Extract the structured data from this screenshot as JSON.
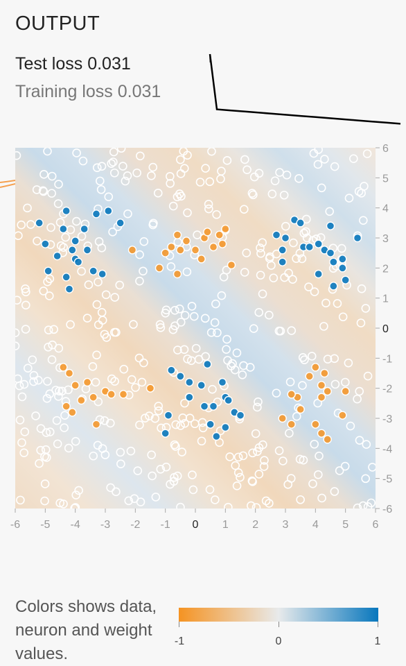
{
  "section_title": "OUTPUT",
  "test_loss": "Test loss 0.031",
  "training_loss": "Training loss 0.031",
  "loss_curve": [
    0.42,
    0.036,
    0.035,
    0.034,
    0.034,
    0.033,
    0.033,
    0.032,
    0.032,
    0.032,
    0.031,
    0.031,
    0.031,
    0.031,
    0.031
  ],
  "chart_data": {
    "type": "scatter",
    "title": "",
    "xlabel": "",
    "ylabel": "",
    "xlim": [
      -6,
      6
    ],
    "ylim": [
      -6,
      6
    ],
    "x_ticks": [
      "-6",
      "-5",
      "-4",
      "-3",
      "-2",
      "-1",
      "0",
      "1",
      "2",
      "3",
      "4",
      "5",
      "6"
    ],
    "y_ticks": [
      "6",
      "5",
      "4",
      "3",
      "2",
      "1",
      "0",
      "-1",
      "-2",
      "-3",
      "-4",
      "-5",
      "-6"
    ],
    "background": "decision-boundary heatmap, diagonal bands",
    "series": [
      {
        "class": "orange",
        "color": "#f59322",
        "points": [
          [
            -0.6,
            3.1
          ],
          [
            -0.3,
            2.9
          ],
          [
            0,
            2.6
          ],
          [
            0.3,
            3.0
          ],
          [
            0.8,
            3.1
          ],
          [
            0.9,
            2.8
          ],
          [
            -0.8,
            2.7
          ],
          [
            -0.5,
            2.6
          ],
          [
            0.2,
            2.3
          ],
          [
            0.6,
            2.7
          ],
          [
            1.0,
            3.3
          ],
          [
            -1.0,
            2.5
          ],
          [
            0.4,
            3.2
          ],
          [
            -2.1,
            2.6
          ],
          [
            -1.2,
            2.0
          ],
          [
            -0.6,
            1.8
          ],
          [
            -4.2,
            -1.5
          ],
          [
            -4.0,
            -1.9
          ],
          [
            -3.8,
            -2.4
          ],
          [
            -4.3,
            -2.6
          ],
          [
            -4.1,
            -2.8
          ],
          [
            -3.4,
            -2.3
          ],
          [
            -3.0,
            -2.1
          ],
          [
            -2.8,
            -2.2
          ],
          [
            -2.4,
            -2.2
          ],
          [
            -3.6,
            -1.8
          ],
          [
            -3.3,
            -3.2
          ],
          [
            -4.4,
            -1.3
          ],
          [
            -1.5,
            -2.0
          ],
          [
            3.4,
            -2.3
          ],
          [
            3.2,
            -2.2
          ],
          [
            3.5,
            -2.7
          ],
          [
            2.9,
            -3.0
          ],
          [
            3.2,
            -3.2
          ],
          [
            4.0,
            -1.3
          ],
          [
            4.3,
            -1.5
          ],
          [
            4.2,
            -1.9
          ],
          [
            4.4,
            -2.1
          ],
          [
            4.2,
            -2.3
          ],
          [
            3.8,
            -1.6
          ],
          [
            4.0,
            -3.2
          ],
          [
            4.2,
            -3.5
          ],
          [
            4.4,
            -3.7
          ],
          [
            5.0,
            -2.1
          ],
          [
            4.9,
            -2.9
          ],
          [
            1.2,
            2.1
          ]
        ]
      },
      {
        "class": "blue",
        "color": "#0877bd",
        "points": [
          [
            -4.3,
            3.9
          ],
          [
            -4.4,
            3.3
          ],
          [
            -4.1,
            2.6
          ],
          [
            -4.0,
            2.3
          ],
          [
            -3.9,
            2.2
          ],
          [
            -3.6,
            2.6
          ],
          [
            -3.4,
            1.9
          ],
          [
            -3.1,
            1.8
          ],
          [
            -4.3,
            1.7
          ],
          [
            -4.6,
            2.4
          ],
          [
            -5.0,
            2.8
          ],
          [
            -4.9,
            1.9
          ],
          [
            -4.2,
            1.3
          ],
          [
            -5.2,
            3.5
          ],
          [
            -3.7,
            3.3
          ],
          [
            -4.0,
            2.9
          ],
          [
            -3.3,
            3.8
          ],
          [
            -2.9,
            3.9
          ],
          [
            -2.5,
            3.5
          ],
          [
            3.3,
            3.6
          ],
          [
            3.0,
            3.0
          ],
          [
            2.9,
            2.6
          ],
          [
            2.9,
            2.2
          ],
          [
            3.6,
            2.7
          ],
          [
            3.8,
            2.7
          ],
          [
            3.5,
            3.5
          ],
          [
            2.7,
            3.1
          ],
          [
            4.3,
            2.6
          ],
          [
            4.1,
            1.8
          ],
          [
            4.6,
            2.2
          ],
          [
            4.9,
            2.3
          ],
          [
            4.9,
            2.0
          ],
          [
            4.5,
            2.5
          ],
          [
            4.1,
            2.8
          ],
          [
            5.0,
            1.6
          ],
          [
            4.5,
            3.4
          ],
          [
            5.4,
            3.0
          ],
          [
            4.6,
            1.4
          ],
          [
            -0.8,
            -1.4
          ],
          [
            -0.5,
            -1.6
          ],
          [
            -0.2,
            -1.8
          ],
          [
            0.2,
            -1.9
          ],
          [
            -0.2,
            -2.3
          ],
          [
            0.3,
            -2.6
          ],
          [
            0.5,
            -3.2
          ],
          [
            -0.9,
            -2.9
          ],
          [
            0.4,
            -1.2
          ],
          [
            0.9,
            -1.8
          ],
          [
            1.0,
            -2.3
          ],
          [
            0.6,
            -2.6
          ],
          [
            1.1,
            -2.4
          ],
          [
            1.0,
            -3.3
          ],
          [
            1.3,
            -2.8
          ],
          [
            1.5,
            -2.9
          ],
          [
            0.7,
            -3.6
          ],
          [
            -1.0,
            -3.5
          ]
        ]
      }
    ]
  },
  "legend": {
    "text": "Colors shows data, neuron and weight values.",
    "ticks": [
      "-1",
      "0",
      "1"
    ]
  }
}
